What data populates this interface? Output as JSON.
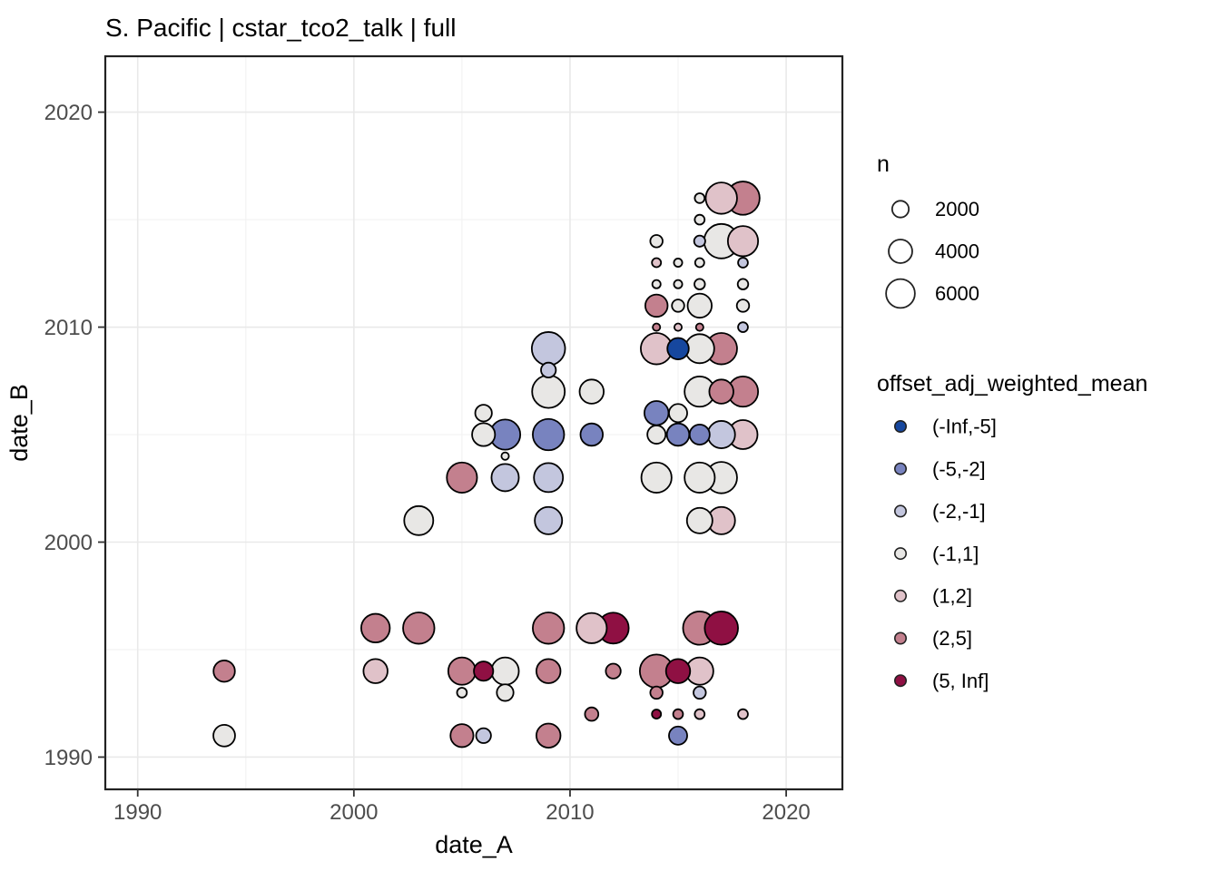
{
  "chart_data": {
    "type": "scatter",
    "title": "S. Pacific | cstar_tco2_talk | full",
    "xlabel": "date_A",
    "ylabel": "date_B",
    "xlim": [
      1988.5,
      2022.6
    ],
    "ylim": [
      1988.5,
      2022.6
    ],
    "x_ticks": [
      1990,
      2000,
      2010,
      2020
    ],
    "y_ticks": [
      1990,
      2000,
      2010,
      2020
    ],
    "x_minor": [
      1995,
      2005,
      2015
    ],
    "y_minor": [
      1995,
      2005,
      2015
    ],
    "grid": "on",
    "legend_position": "right",
    "size_scale_k": 0.205,
    "size_legend": {
      "title": "n",
      "values": [
        2000,
        4000,
        6000
      ]
    },
    "color_legend": {
      "title": "offset_adj_weighted_mean",
      "bins": [
        {
          "label": "(-Inf,-5]",
          "color": "#16479e"
        },
        {
          "label": "(-5,-2]",
          "color": "#7883bf"
        },
        {
          "label": "(-2,-1]",
          "color": "#c3c6de"
        },
        {
          "label": "(-1,1]",
          "color": "#e8e7e5"
        },
        {
          "label": "(1,2]",
          "color": "#e0c2c9"
        },
        {
          "label": "(2,5]",
          "color": "#c3808e"
        },
        {
          "label": "(5, Inf]",
          "color": "#8f1043"
        }
      ]
    },
    "points": [
      {
        "x": 2016,
        "y": 2016,
        "n": 700,
        "bin": "(-1,1]"
      },
      {
        "x": 2017,
        "y": 2016,
        "n": 7100,
        "bin": "(1,2]"
      },
      {
        "x": 2018,
        "y": 2016,
        "n": 8000,
        "bin": "(2,5]"
      },
      {
        "x": 2016,
        "y": 2015,
        "n": 700,
        "bin": "(-1,1]"
      },
      {
        "x": 2014,
        "y": 2014,
        "n": 1100,
        "bin": "(-1,1]"
      },
      {
        "x": 2016,
        "y": 2014,
        "n": 900,
        "bin": "(-2,-1]"
      },
      {
        "x": 2017,
        "y": 2014,
        "n": 8600,
        "bin": "(-1,1]"
      },
      {
        "x": 2018,
        "y": 2014,
        "n": 6600,
        "bin": "(1,2]"
      },
      {
        "x": 2014,
        "y": 2013,
        "n": 600,
        "bin": "(1,2]"
      },
      {
        "x": 2015,
        "y": 2013,
        "n": 500,
        "bin": "(-1,1]"
      },
      {
        "x": 2016,
        "y": 2013,
        "n": 600,
        "bin": "(-1,1]"
      },
      {
        "x": 2018,
        "y": 2013,
        "n": 700,
        "bin": "(-2,-1]"
      },
      {
        "x": 2014,
        "y": 2012,
        "n": 500,
        "bin": "(-1,1]"
      },
      {
        "x": 2015,
        "y": 2012,
        "n": 500,
        "bin": "(-1,1]"
      },
      {
        "x": 2016,
        "y": 2012,
        "n": 800,
        "bin": "(-1,1]"
      },
      {
        "x": 2018,
        "y": 2012,
        "n": 800,
        "bin": "(-1,1]"
      },
      {
        "x": 2014,
        "y": 2011,
        "n": 3600,
        "bin": "(2,5]"
      },
      {
        "x": 2015,
        "y": 2011,
        "n": 1100,
        "bin": "(-1,1]"
      },
      {
        "x": 2016,
        "y": 2011,
        "n": 4200,
        "bin": "(-1,1]"
      },
      {
        "x": 2018,
        "y": 2011,
        "n": 1100,
        "bin": "(-1,1]"
      },
      {
        "x": 2014,
        "y": 2010,
        "n": 400,
        "bin": "(2,5]"
      },
      {
        "x": 2015,
        "y": 2010,
        "n": 400,
        "bin": "(1,2]"
      },
      {
        "x": 2016,
        "y": 2010,
        "n": 400,
        "bin": "(2,5]"
      },
      {
        "x": 2018,
        "y": 2010,
        "n": 700,
        "bin": "(-2,-1]"
      },
      {
        "x": 2009,
        "y": 2009,
        "n": 8000,
        "bin": "(-2,-1]"
      },
      {
        "x": 2014,
        "y": 2009,
        "n": 7100,
        "bin": "(1,2]"
      },
      {
        "x": 2015,
        "y": 2009,
        "n": 3300,
        "bin": "(-Inf,-5]"
      },
      {
        "x": 2016,
        "y": 2009,
        "n": 6100,
        "bin": "(-1,1]"
      },
      {
        "x": 2017,
        "y": 2009,
        "n": 7100,
        "bin": "(2,5]"
      },
      {
        "x": 2009,
        "y": 2008,
        "n": 1600,
        "bin": "(-2,-1]"
      },
      {
        "x": 2009,
        "y": 2007,
        "n": 7700,
        "bin": "(-1,1]"
      },
      {
        "x": 2011,
        "y": 2007,
        "n": 4200,
        "bin": "(-1,1]"
      },
      {
        "x": 2016,
        "y": 2007,
        "n": 6600,
        "bin": "(-1,1]"
      },
      {
        "x": 2017,
        "y": 2007,
        "n": 4200,
        "bin": "(2,5]"
      },
      {
        "x": 2018,
        "y": 2007,
        "n": 6600,
        "bin": "(2,5]"
      },
      {
        "x": 2006,
        "y": 2006,
        "n": 2000,
        "bin": "(-1,1]"
      },
      {
        "x": 2014,
        "y": 2006,
        "n": 4200,
        "bin": "(-5,-2]"
      },
      {
        "x": 2015,
        "y": 2006,
        "n": 2400,
        "bin": "(-1,1]"
      },
      {
        "x": 2006,
        "y": 2005,
        "n": 3800,
        "bin": "(-1,1]"
      },
      {
        "x": 2007,
        "y": 2005,
        "n": 6600,
        "bin": "(-5,-2]"
      },
      {
        "x": 2009,
        "y": 2005,
        "n": 7100,
        "bin": "(-5,-2]"
      },
      {
        "x": 2011,
        "y": 2005,
        "n": 3600,
        "bin": "(-5,-2]"
      },
      {
        "x": 2014,
        "y": 2005,
        "n": 2400,
        "bin": "(-1,1]"
      },
      {
        "x": 2015,
        "y": 2005,
        "n": 3600,
        "bin": "(-5,-2]"
      },
      {
        "x": 2016,
        "y": 2005,
        "n": 2900,
        "bin": "(-5,-2]"
      },
      {
        "x": 2017,
        "y": 2005,
        "n": 5400,
        "bin": "(-2,-1]"
      },
      {
        "x": 2018,
        "y": 2005,
        "n": 6100,
        "bin": "(1,2]"
      },
      {
        "x": 2007,
        "y": 2004,
        "n": 400,
        "bin": "(-1,1]"
      },
      {
        "x": 2005,
        "y": 2003,
        "n": 6600,
        "bin": "(2,5]"
      },
      {
        "x": 2007,
        "y": 2003,
        "n": 5400,
        "bin": "(-2,-1]"
      },
      {
        "x": 2009,
        "y": 2003,
        "n": 6100,
        "bin": "(-2,-1]"
      },
      {
        "x": 2014,
        "y": 2003,
        "n": 6600,
        "bin": "(-1,1]"
      },
      {
        "x": 2016,
        "y": 2003,
        "n": 6600,
        "bin": "(-1,1]"
      },
      {
        "x": 2017,
        "y": 2003,
        "n": 7100,
        "bin": "(-1,1]"
      },
      {
        "x": 2003,
        "y": 2001,
        "n": 6100,
        "bin": "(-1,1]"
      },
      {
        "x": 2009,
        "y": 2001,
        "n": 5400,
        "bin": "(-2,-1]"
      },
      {
        "x": 2016,
        "y": 2001,
        "n": 4700,
        "bin": "(-1,1]"
      },
      {
        "x": 2017,
        "y": 2001,
        "n": 5400,
        "bin": "(1,2]"
      },
      {
        "x": 2001,
        "y": 1996,
        "n": 5900,
        "bin": "(2,5]"
      },
      {
        "x": 2003,
        "y": 1996,
        "n": 7100,
        "bin": "(2,5]"
      },
      {
        "x": 2009,
        "y": 1996,
        "n": 7100,
        "bin": "(2,5]"
      },
      {
        "x": 2011,
        "y": 1996,
        "n": 6600,
        "bin": "(1,2]"
      },
      {
        "x": 2012,
        "y": 1996,
        "n": 6900,
        "bin": "(5, Inf]"
      },
      {
        "x": 2016,
        "y": 1996,
        "n": 8000,
        "bin": "(2,5]"
      },
      {
        "x": 2017,
        "y": 1996,
        "n": 8000,
        "bin": "(5, Inf]"
      },
      {
        "x": 1994,
        "y": 1994,
        "n": 3300,
        "bin": "(2,5]"
      },
      {
        "x": 2001,
        "y": 1994,
        "n": 4200,
        "bin": "(1,2]"
      },
      {
        "x": 2005,
        "y": 1994,
        "n": 5400,
        "bin": "(2,5]"
      },
      {
        "x": 2006,
        "y": 1994,
        "n": 2700,
        "bin": "(5, Inf]"
      },
      {
        "x": 2007,
        "y": 1994,
        "n": 5400,
        "bin": "(-1,1]"
      },
      {
        "x": 2009,
        "y": 1994,
        "n": 4200,
        "bin": "(2,5]"
      },
      {
        "x": 2012,
        "y": 1994,
        "n": 1600,
        "bin": "(2,5]"
      },
      {
        "x": 2014,
        "y": 1994,
        "n": 8000,
        "bin": "(2,5]"
      },
      {
        "x": 2015,
        "y": 1994,
        "n": 4200,
        "bin": "(5, Inf]"
      },
      {
        "x": 2016,
        "y": 1994,
        "n": 5400,
        "bin": "(1,2]"
      },
      {
        "x": 2005,
        "y": 1993,
        "n": 700,
        "bin": "(-1,1]"
      },
      {
        "x": 2007,
        "y": 1993,
        "n": 2000,
        "bin": "(-1,1]"
      },
      {
        "x": 2014,
        "y": 1993,
        "n": 1100,
        "bin": "(2,5]"
      },
      {
        "x": 2016,
        "y": 1993,
        "n": 1100,
        "bin": "(-2,-1]"
      },
      {
        "x": 2011,
        "y": 1992,
        "n": 1300,
        "bin": "(2,5]"
      },
      {
        "x": 2014,
        "y": 1992,
        "n": 600,
        "bin": "(5, Inf]"
      },
      {
        "x": 2015,
        "y": 1992,
        "n": 700,
        "bin": "(2,5]"
      },
      {
        "x": 2016,
        "y": 1992,
        "n": 700,
        "bin": "(1,2]"
      },
      {
        "x": 2018,
        "y": 1992,
        "n": 700,
        "bin": "(1,2]"
      },
      {
        "x": 1994,
        "y": 1991,
        "n": 3400,
        "bin": "(-1,1]"
      },
      {
        "x": 2005,
        "y": 1991,
        "n": 3800,
        "bin": "(2,5]"
      },
      {
        "x": 2006,
        "y": 1991,
        "n": 1600,
        "bin": "(-2,-1]"
      },
      {
        "x": 2009,
        "y": 1991,
        "n": 4200,
        "bin": "(2,5]"
      },
      {
        "x": 2015,
        "y": 1991,
        "n": 2400,
        "bin": "(-5,-2]"
      }
    ]
  },
  "style": {
    "panel_border": "#222222",
    "grid_major": "#e9e9e9",
    "grid_minor": "#f2f2f2",
    "tick_color": "#333333",
    "tick_label_color": "#4d4d4d",
    "point_stroke": "#000000"
  }
}
